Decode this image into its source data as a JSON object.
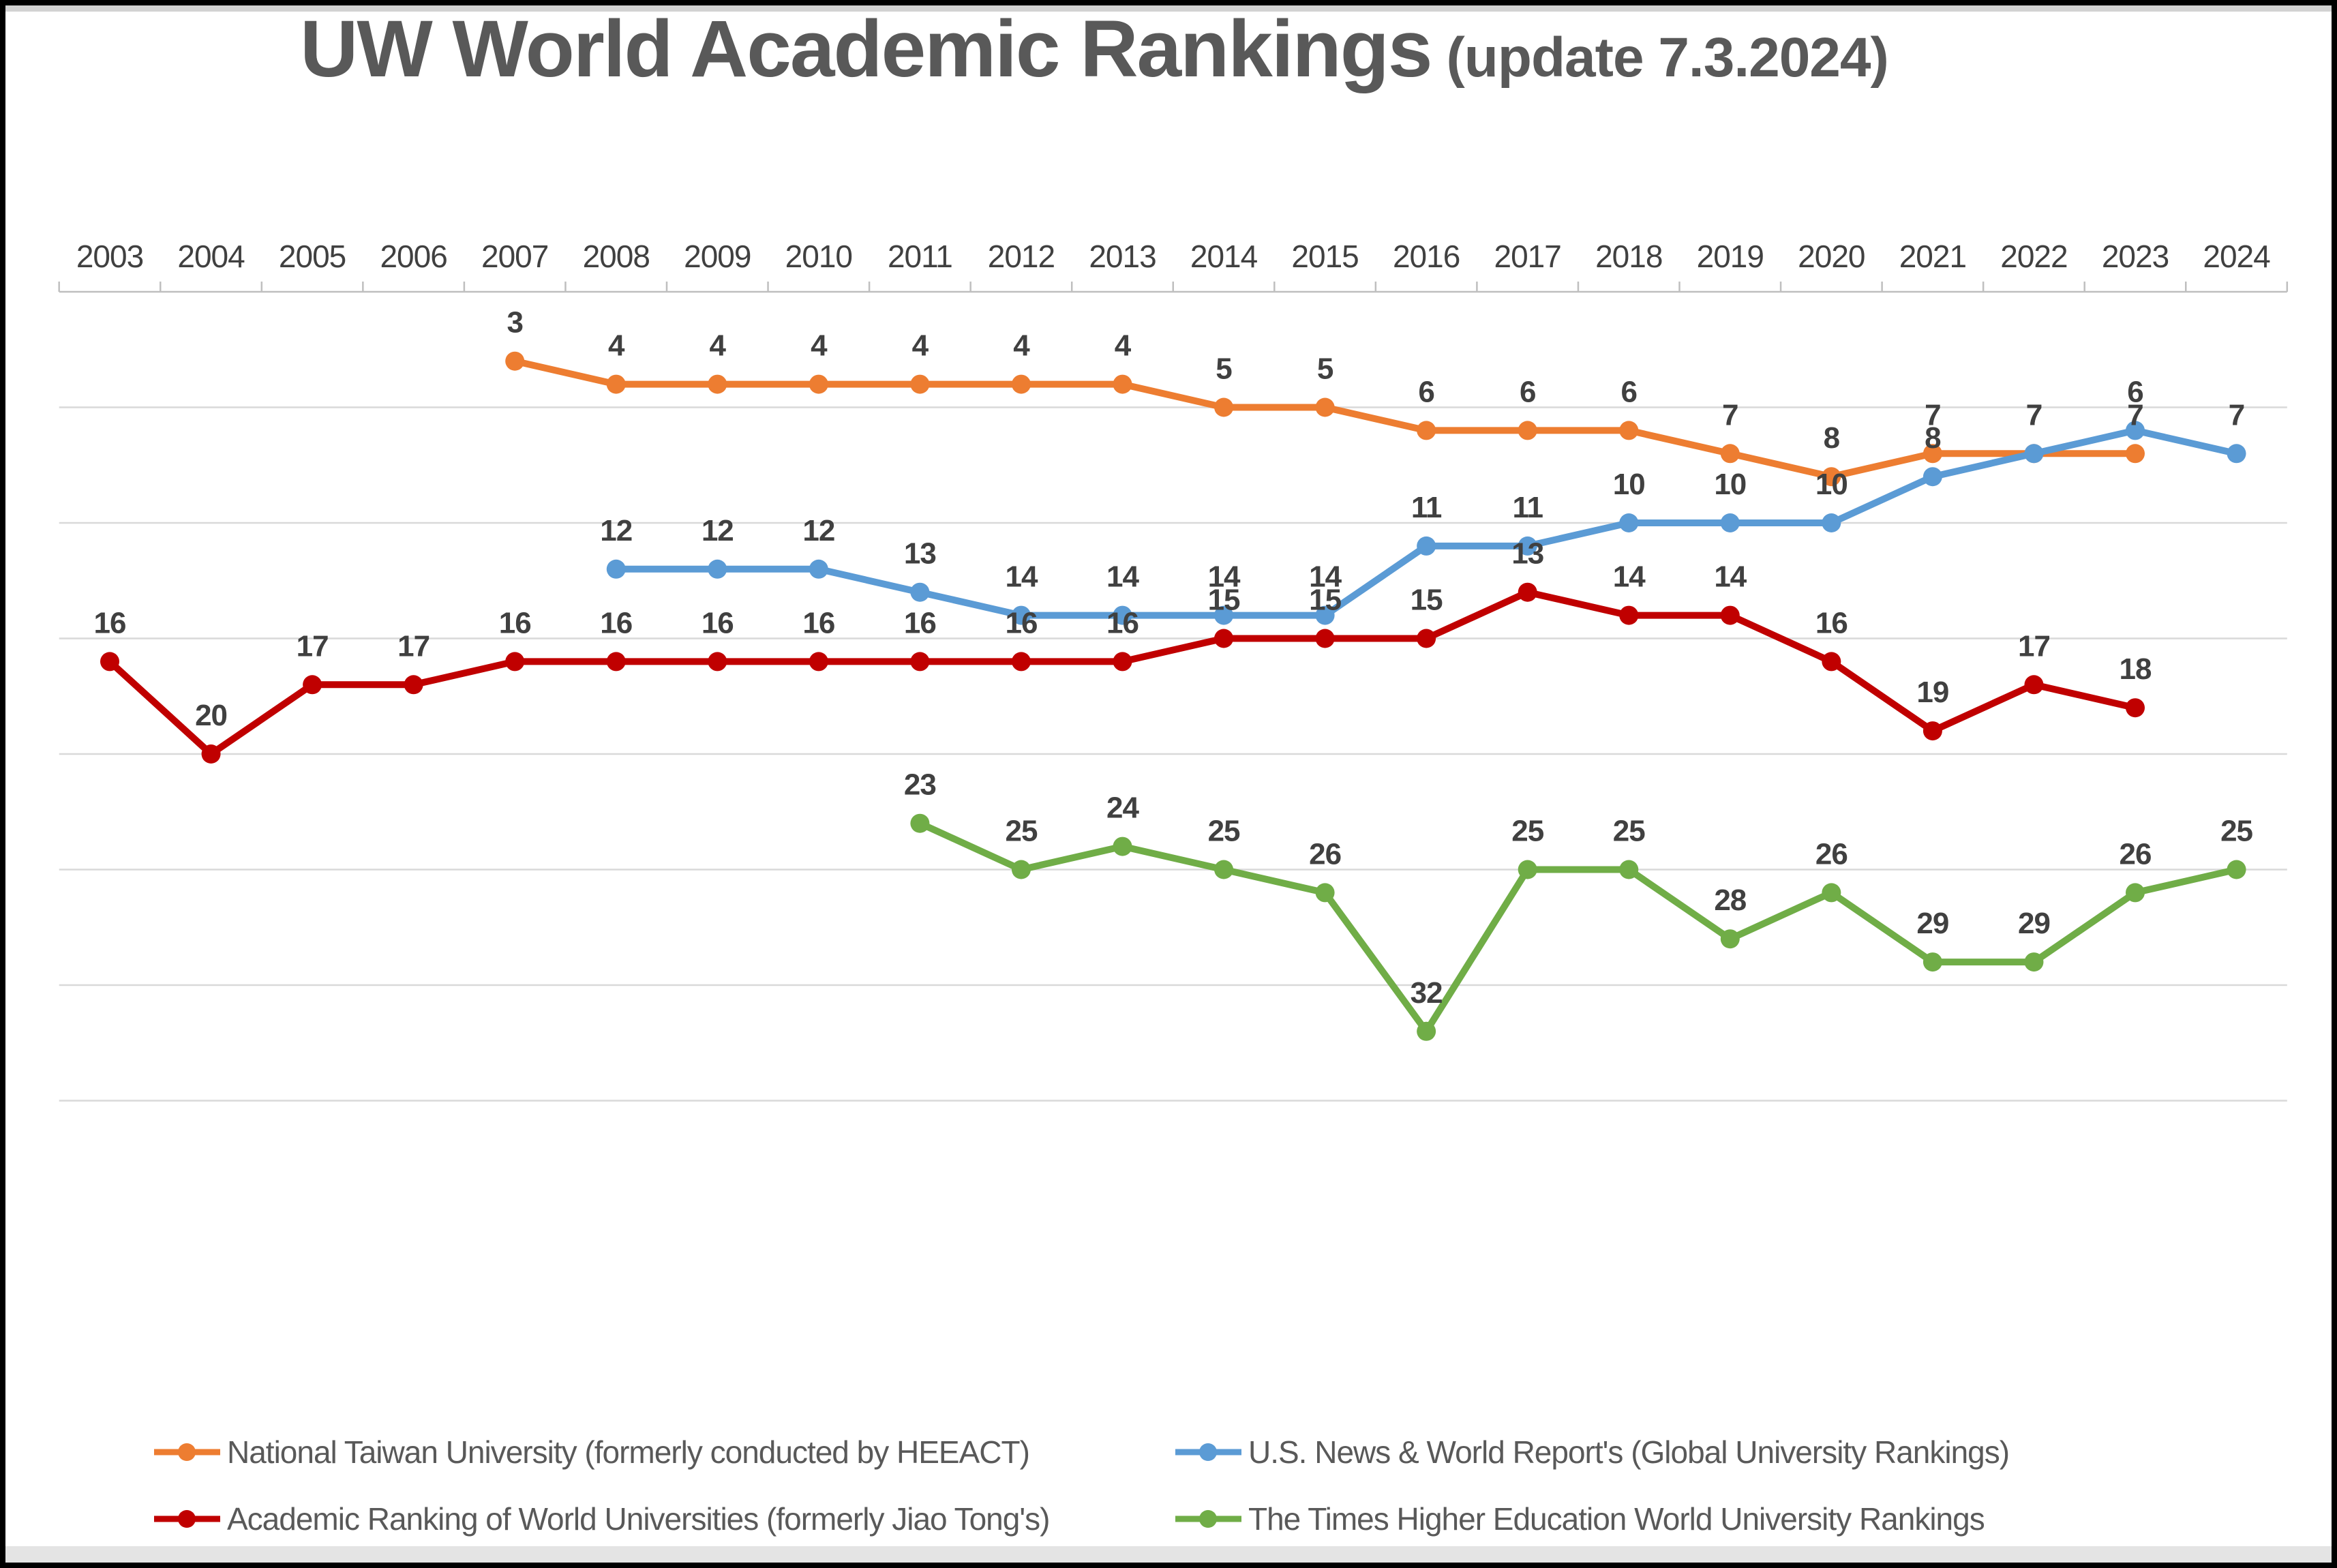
{
  "chart_data": {
    "type": "line",
    "title": "UW World Academic Rankings",
    "subtitle": "(update 7.3.2024)",
    "x": [
      2003,
      2004,
      2005,
      2006,
      2007,
      2008,
      2009,
      2010,
      2011,
      2012,
      2013,
      2014,
      2015,
      2016,
      2017,
      2018,
      2019,
      2020,
      2021,
      2022,
      2023,
      2024
    ],
    "y_axis": {
      "inverted": true,
      "min": 0,
      "max": 35,
      "grid_interval": 5,
      "tick_labels_hidden": true,
      "grid_on": true
    },
    "legend_position": "bottom",
    "series": [
      {
        "name": "National Taiwan University (formerly conducted by HEEACT)",
        "color": "#ED7D31",
        "values": [
          null,
          null,
          null,
          null,
          3,
          4,
          4,
          4,
          4,
          4,
          4,
          5,
          5,
          6,
          6,
          6,
          7,
          8,
          7,
          7,
          7,
          null
        ]
      },
      {
        "name": "U.S. News & World Report's (Global University Rankings)",
        "color": "#5B9BD5",
        "values": [
          null,
          null,
          null,
          null,
          null,
          12,
          12,
          12,
          13,
          14,
          14,
          14,
          14,
          11,
          11,
          10,
          10,
          10,
          8,
          7,
          6,
          7
        ]
      },
      {
        "name": "Academic Ranking of World Universities (formerly Jiao Tong's)",
        "color": "#C00000",
        "values": [
          16,
          20,
          17,
          17,
          16,
          16,
          16,
          16,
          16,
          16,
          16,
          15,
          15,
          15,
          13,
          14,
          14,
          16,
          19,
          17,
          18,
          null
        ]
      },
      {
        "name": "The Times Higher Education World University Rankings",
        "color": "#70AD47",
        "values": [
          null,
          null,
          null,
          null,
          null,
          null,
          null,
          null,
          23,
          25,
          24,
          25,
          26,
          32,
          25,
          25,
          28,
          26,
          29,
          29,
          26,
          25
        ]
      }
    ]
  },
  "frame": {
    "border_color": "#000000",
    "top_strip_color": "#d2d2d2",
    "bottom_strip_color": "#e4e4e4",
    "gridline_color": "#D9D9D9",
    "axis_color": "#BFBFBF",
    "label_color": "#404040"
  }
}
